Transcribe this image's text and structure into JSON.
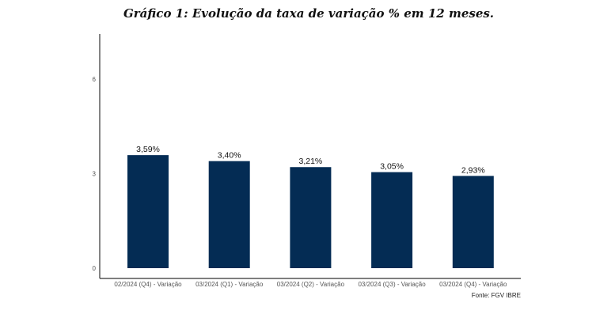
{
  "chart_data": {
    "type": "bar",
    "title": "Gráfico 1: Evolução da taxa de variação % em 12 meses.",
    "categories": [
      "02/2024 (Q4) - Variação",
      "03/2024 (Q1) - Variação",
      "03/2024 (Q2) - Variação",
      "03/2024 (Q3) - Variação",
      "03/2024 (Q4) - Variação"
    ],
    "values": [
      3.59,
      3.4,
      3.21,
      3.05,
      2.93
    ],
    "data_labels": [
      "3,59%",
      "3,40%",
      "3,21%",
      "3,05%",
      "2,93%"
    ],
    "y_ticks": [
      0,
      3,
      6
    ],
    "ylim": [
      0,
      7.5
    ],
    "xlabel": "",
    "ylabel": "",
    "grid": false,
    "legend": "none",
    "bar_color": "#042C54",
    "source": "Fonte: FGV IBRE"
  }
}
